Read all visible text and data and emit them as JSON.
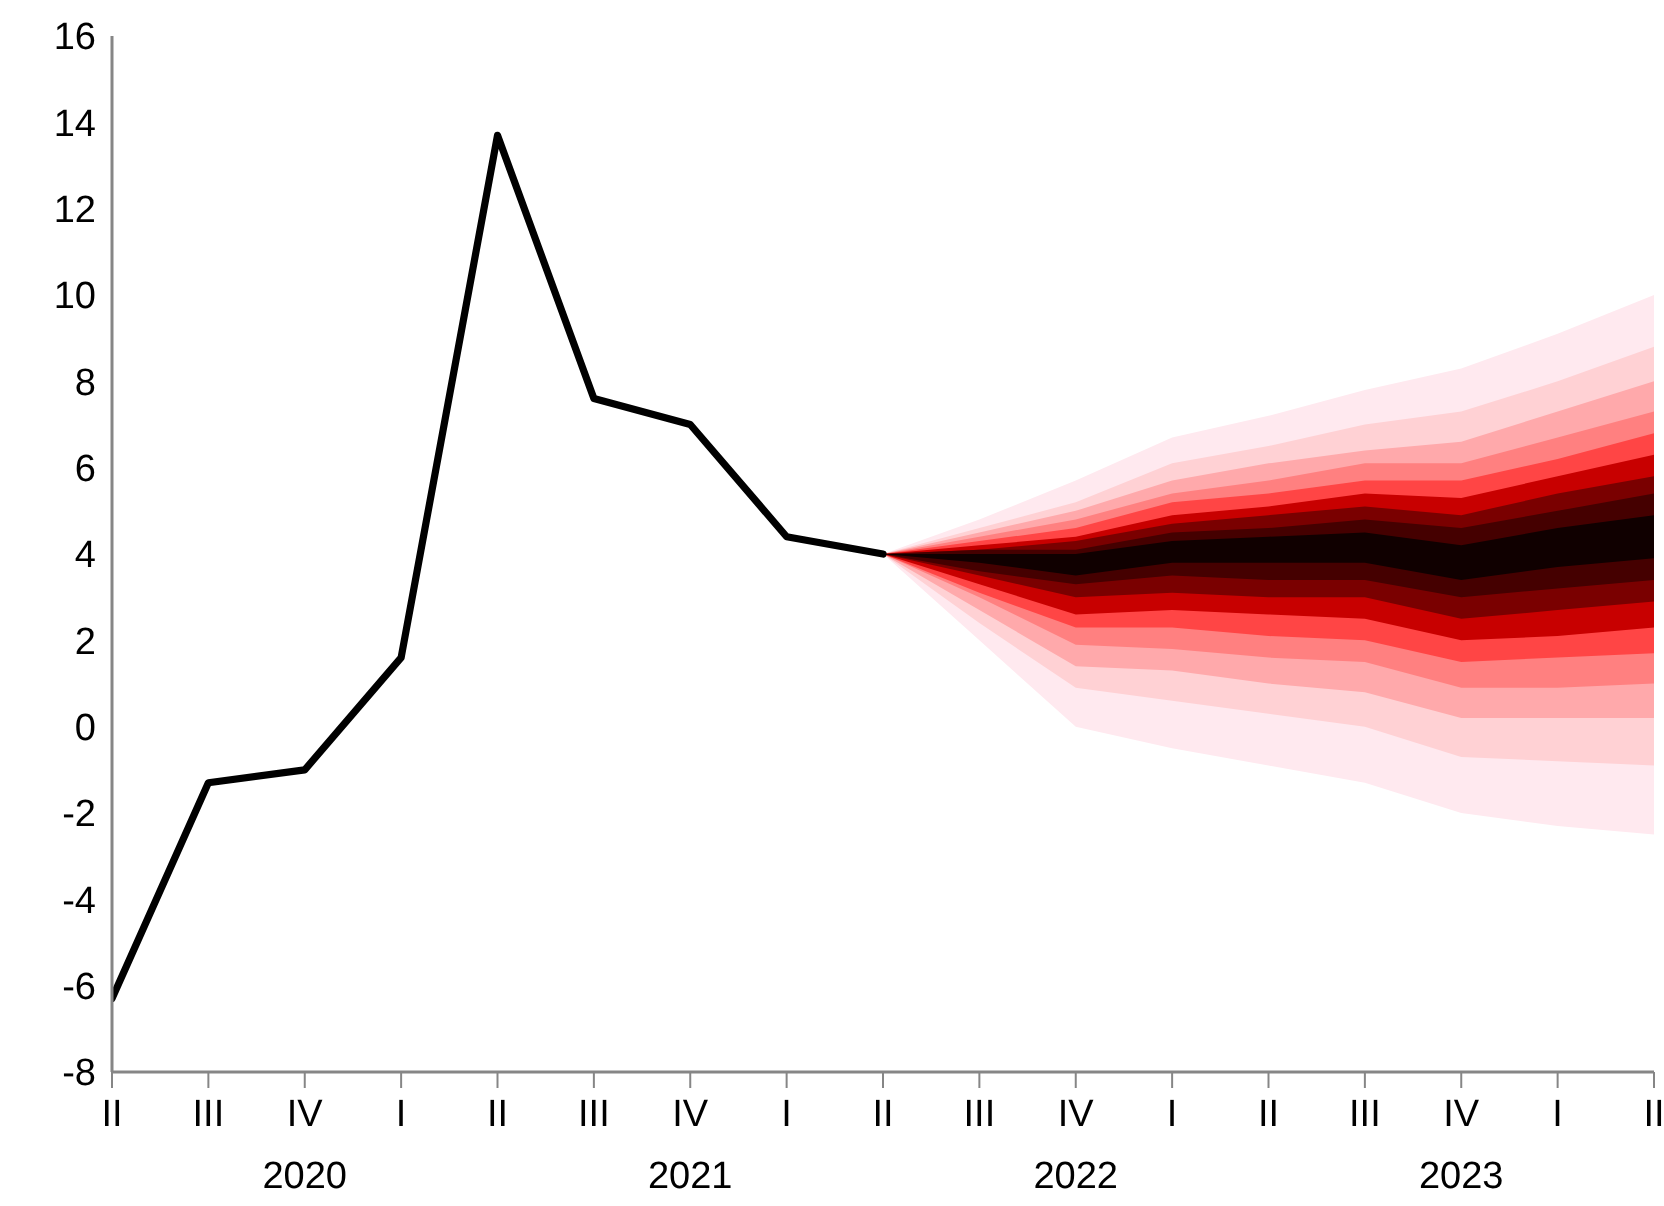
{
  "chart_data": {
    "type": "line",
    "categories": [
      "II",
      "III",
      "IV",
      "I",
      "II",
      "III",
      "IV",
      "I",
      "II",
      "III",
      "IV",
      "I",
      "II",
      "III",
      "IV",
      "I",
      "II"
    ],
    "ylim": [
      -8,
      16
    ],
    "yticks": [
      -8,
      -6,
      -4,
      -2,
      0,
      2,
      4,
      6,
      8,
      10,
      12,
      14,
      16
    ],
    "marker": "none",
    "line_style": "solid",
    "annotations": [
      "2020",
      "2021",
      "2022",
      "2023"
    ],
    "series": [
      {
        "type": "area",
        "color": "#ffe9ef",
        "values": [
          null,
          null,
          null,
          null,
          null,
          null,
          null,
          null,
          null,
          null,
          null,
          null,
          null,
          null,
          null,
          null,
          null
        ],
        "lower": [
          null,
          null,
          null,
          null,
          null,
          null,
          null,
          null,
          4.0,
          2.0,
          0.0,
          -0.5,
          -0.9,
          -1.3,
          -2.0,
          -2.3,
          -2.5
        ],
        "upper": [
          null,
          null,
          null,
          null,
          null,
          null,
          null,
          null,
          4.0,
          4.8,
          5.7,
          6.7,
          7.2,
          7.8,
          8.3,
          9.1,
          10.0
        ]
      },
      {
        "type": "area",
        "color": "#ffd1d4",
        "values": [
          null,
          null,
          null,
          null,
          null,
          null,
          null,
          null,
          null,
          null,
          null,
          null,
          null,
          null,
          null,
          null,
          null
        ],
        "lower": [
          null,
          null,
          null,
          null,
          null,
          null,
          null,
          null,
          4.0,
          2.4,
          0.9,
          0.6,
          0.3,
          0.0,
          -0.7,
          -0.8,
          -0.9
        ],
        "upper": [
          null,
          null,
          null,
          null,
          null,
          null,
          null,
          null,
          4.0,
          4.6,
          5.2,
          6.1,
          6.5,
          7.0,
          7.3,
          8.0,
          8.8
        ]
      },
      {
        "type": "area",
        "color": "#ffa9ab",
        "values": [
          null,
          null,
          null,
          null,
          null,
          null,
          null,
          null,
          null,
          null,
          null,
          null,
          null,
          null,
          null,
          null,
          null
        ],
        "lower": [
          null,
          null,
          null,
          null,
          null,
          null,
          null,
          null,
          4.0,
          2.7,
          1.4,
          1.3,
          1.0,
          0.8,
          0.2,
          0.2,
          0.2
        ],
        "upper": [
          null,
          null,
          null,
          null,
          null,
          null,
          null,
          null,
          4.0,
          4.5,
          5.0,
          5.7,
          6.1,
          6.4,
          6.6,
          7.3,
          8.0
        ]
      },
      {
        "type": "area",
        "color": "#ff8080",
        "values": [
          null,
          null,
          null,
          null,
          null,
          null,
          null,
          null,
          null,
          null,
          null,
          null,
          null,
          null,
          null,
          null,
          null
        ],
        "lower": [
          null,
          null,
          null,
          null,
          null,
          null,
          null,
          null,
          4.0,
          3.0,
          1.9,
          1.8,
          1.6,
          1.5,
          0.9,
          0.9,
          1.0
        ],
        "upper": [
          null,
          null,
          null,
          null,
          null,
          null,
          null,
          null,
          4.0,
          4.4,
          4.8,
          5.4,
          5.7,
          6.1,
          6.1,
          6.7,
          7.3
        ]
      },
      {
        "type": "area",
        "color": "#ff4545",
        "values": [
          null,
          null,
          null,
          null,
          null,
          null,
          null,
          null,
          null,
          null,
          null,
          null,
          null,
          null,
          null,
          null,
          null
        ],
        "lower": [
          null,
          null,
          null,
          null,
          null,
          null,
          null,
          null,
          4.0,
          3.1,
          2.3,
          2.3,
          2.1,
          2.0,
          1.5,
          1.6,
          1.7
        ],
        "upper": [
          null,
          null,
          null,
          null,
          null,
          null,
          null,
          null,
          4.0,
          4.3,
          4.6,
          5.2,
          5.4,
          5.7,
          5.7,
          6.2,
          6.8
        ]
      },
      {
        "type": "area",
        "color": "#c80000",
        "values": [
          null,
          null,
          null,
          null,
          null,
          null,
          null,
          null,
          null,
          null,
          null,
          null,
          null,
          null,
          null,
          null,
          null
        ],
        "lower": [
          null,
          null,
          null,
          null,
          null,
          null,
          null,
          null,
          4.0,
          3.3,
          2.6,
          2.7,
          2.6,
          2.5,
          2.0,
          2.1,
          2.3
        ],
        "upper": [
          null,
          null,
          null,
          null,
          null,
          null,
          null,
          null,
          4.0,
          4.2,
          4.4,
          4.9,
          5.1,
          5.4,
          5.3,
          5.8,
          6.3
        ]
      },
      {
        "type": "area",
        "color": "#7a0000",
        "values": [
          null,
          null,
          null,
          null,
          null,
          null,
          null,
          null,
          null,
          null,
          null,
          null,
          null,
          null,
          null,
          null,
          null
        ],
        "lower": [
          null,
          null,
          null,
          null,
          null,
          null,
          null,
          null,
          4.0,
          3.5,
          3.0,
          3.1,
          3.0,
          3.0,
          2.5,
          2.7,
          2.9
        ],
        "upper": [
          null,
          null,
          null,
          null,
          null,
          null,
          null,
          null,
          4.0,
          4.1,
          4.3,
          4.7,
          4.9,
          5.1,
          4.9,
          5.4,
          5.8
        ]
      },
      {
        "type": "area",
        "color": "#450000",
        "values": [
          null,
          null,
          null,
          null,
          null,
          null,
          null,
          null,
          null,
          null,
          null,
          null,
          null,
          null,
          null,
          null,
          null
        ],
        "lower": [
          null,
          null,
          null,
          null,
          null,
          null,
          null,
          null,
          4.0,
          3.6,
          3.3,
          3.5,
          3.4,
          3.4,
          3.0,
          3.2,
          3.4
        ],
        "upper": [
          null,
          null,
          null,
          null,
          null,
          null,
          null,
          null,
          4.0,
          4.1,
          4.1,
          4.5,
          4.6,
          4.8,
          4.6,
          5.0,
          5.4
        ]
      },
      {
        "type": "area",
        "color": "#100000",
        "values": [
          null,
          null,
          null,
          null,
          null,
          null,
          null,
          null,
          null,
          null,
          null,
          null,
          null,
          null,
          null,
          null,
          null
        ],
        "lower": [
          null,
          null,
          null,
          null,
          null,
          null,
          null,
          null,
          4.0,
          3.8,
          3.5,
          3.8,
          3.8,
          3.8,
          3.4,
          3.7,
          3.9
        ],
        "upper": [
          null,
          null,
          null,
          null,
          null,
          null,
          null,
          null,
          4.0,
          4.0,
          4.0,
          4.3,
          4.4,
          4.5,
          4.2,
          4.6,
          4.9
        ]
      },
      {
        "type": "line",
        "color": "#000000",
        "values": [
          -6.3,
          -1.3,
          -1.0,
          1.6,
          13.7,
          7.6,
          7.0,
          4.4,
          4.0,
          null,
          null,
          null,
          null,
          null,
          null,
          null,
          null
        ]
      }
    ]
  }
}
